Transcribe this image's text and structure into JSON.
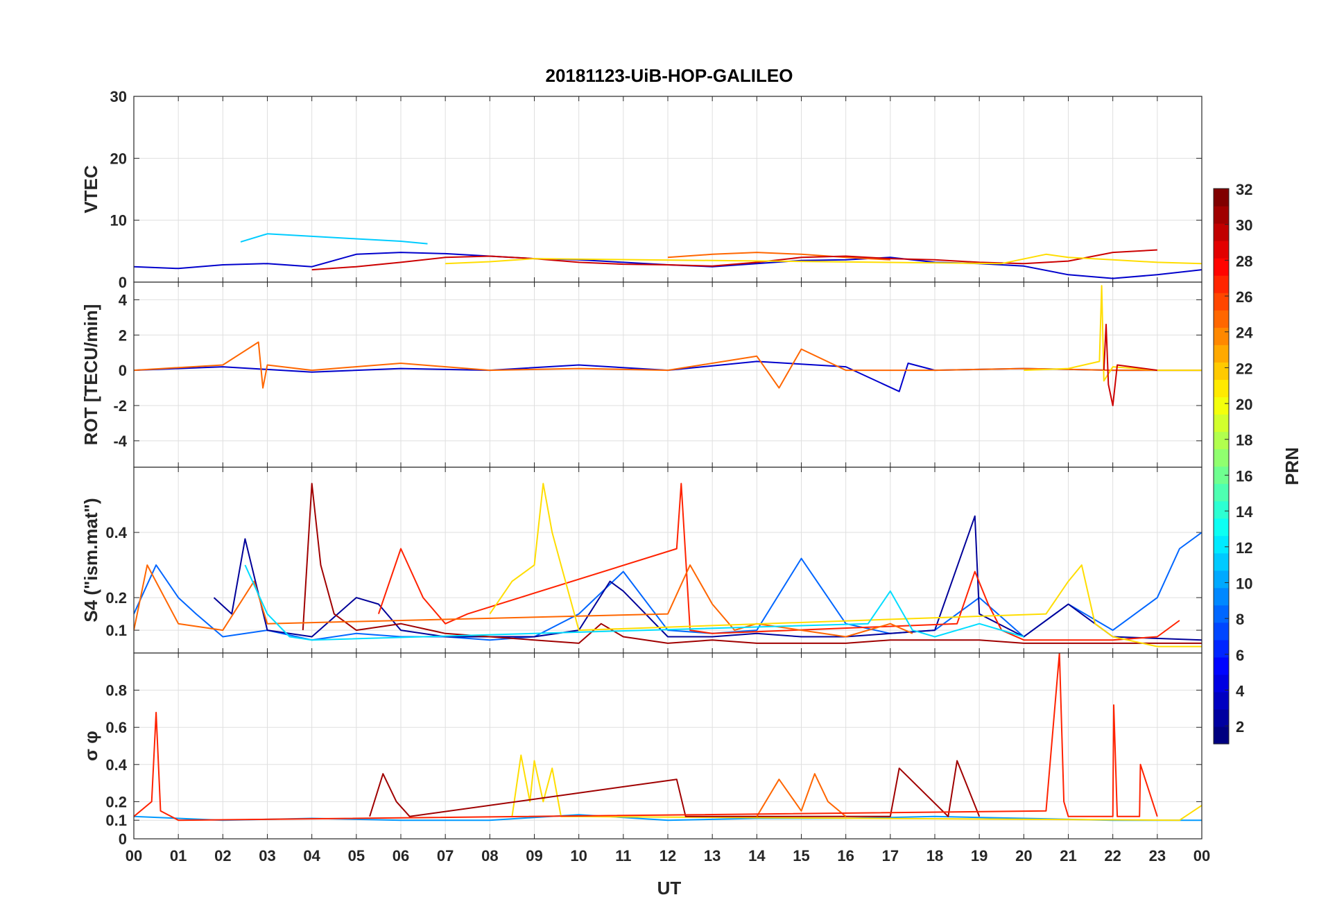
{
  "chart_data": {
    "type": "line",
    "title": "20181123-UiB-HOP-GALILEO",
    "xlabel": "UT",
    "x_tick_labels": [
      "00",
      "01",
      "02",
      "03",
      "04",
      "05",
      "06",
      "07",
      "08",
      "09",
      "10",
      "11",
      "12",
      "13",
      "14",
      "15",
      "16",
      "17",
      "18",
      "19",
      "20",
      "21",
      "22",
      "23",
      "00"
    ],
    "xlim": [
      0,
      24
    ],
    "panels": [
      {
        "name": "vtec",
        "ylabel": "VTEC",
        "ylim": [
          0,
          30
        ],
        "yticks": [
          0,
          10,
          20,
          30
        ],
        "ytick_labels": [
          "0",
          "10",
          "20",
          "30"
        ],
        "series": [
          {
            "prn": 4,
            "color": "#0000cc",
            "x": [
              0,
              1,
              2,
              3,
              4,
              5,
              6,
              7,
              8,
              9,
              10,
              11,
              12,
              13,
              14,
              15,
              16,
              17,
              18,
              19,
              20,
              21,
              22,
              23,
              24
            ],
            "y": [
              2.5,
              2.2,
              2.8,
              3,
              2.5,
              4.5,
              4.8,
              4.6,
              4.2,
              3.8,
              3.6,
              3.2,
              2.8,
              2.5,
              3,
              3.5,
              3.6,
              4,
              3.2,
              3,
              2.6,
              1.2,
              0.6,
              1.2,
              2
            ]
          },
          {
            "prn": 11,
            "color": "#00ccff",
            "x": [
              2.4,
              3,
              4,
              5,
              6,
              6.6
            ],
            "y": [
              6.5,
              7.8,
              7.4,
              7,
              6.6,
              6.2
            ]
          },
          {
            "prn": 24,
            "color": "#ff6600",
            "x": [
              12,
              13,
              14,
              15,
              16,
              17
            ],
            "y": [
              4,
              4.5,
              4.8,
              4.5,
              4,
              3.6
            ]
          },
          {
            "prn": 28,
            "color": "#cc0000",
            "x": [
              4,
              5,
              6,
              7,
              8,
              9,
              10,
              11,
              12,
              13,
              14,
              15,
              16,
              17,
              18,
              19,
              20,
              21,
              22,
              23
            ],
            "y": [
              2,
              2.5,
              3.2,
              4,
              4.2,
              3.8,
              3.2,
              2.9,
              2.8,
              2.6,
              3.2,
              4,
              4.2,
              3.8,
              3.6,
              3.2,
              3,
              3.4,
              4.8,
              5.2
            ]
          },
          {
            "prn": 20,
            "color": "#ffdd00",
            "x": [
              7,
              8,
              9,
              19.5,
              20.5,
              21,
              22,
              23,
              24
            ],
            "y": [
              3,
              3.3,
              3.8,
              3,
              4.5,
              4,
              3.6,
              3.2,
              3
            ]
          }
        ]
      },
      {
        "name": "rot",
        "ylabel": "ROT [TECU/min]",
        "ylim": [
          -5.5,
          5
        ],
        "yticks": [
          -4,
          -2,
          0,
          2,
          4
        ],
        "ytick_labels": [
          "-4",
          "-2",
          "0",
          "2",
          "4"
        ],
        "series": [
          {
            "prn": 4,
            "color": "#0000cc",
            "x": [
              0,
              2,
              4,
              6,
              8,
              10,
              12,
              14,
              16,
              17.2,
              17.4,
              18,
              20,
              22,
              24
            ],
            "y": [
              0,
              0.2,
              -0.1,
              0.1,
              0,
              0.3,
              0,
              0.5,
              0.2,
              -1.2,
              0.4,
              0,
              0.1,
              0,
              0
            ]
          },
          {
            "prn": 24,
            "color": "#ff6600",
            "x": [
              0,
              2,
              2.8,
              2.9,
              3,
              4,
              6,
              8,
              10,
              12,
              14,
              14.5,
              15,
              16,
              18,
              20,
              22,
              24
            ],
            "y": [
              0,
              0.3,
              1.6,
              -1,
              0.3,
              0,
              0.4,
              0,
              0.1,
              0,
              0.8,
              -1,
              1.2,
              0,
              0,
              0.1,
              0,
              0
            ]
          },
          {
            "prn": 20,
            "color": "#ffdd00",
            "x": [
              20,
              21,
              21.7,
              21.75,
              21.8,
              22,
              23,
              24
            ],
            "y": [
              0,
              0.1,
              0.5,
              4.8,
              -0.6,
              0.2,
              0,
              0
            ]
          },
          {
            "prn": 28,
            "color": "#cc0000",
            "x": [
              21.8,
              21.85,
              21.9,
              22,
              22.1,
              23
            ],
            "y": [
              0,
              2.6,
              -0.8,
              -2,
              0.3,
              0
            ]
          }
        ]
      },
      {
        "name": "s4",
        "ylabel": "S4 (\"ism.mat\")",
        "ylim": [
          0.03,
          0.6
        ],
        "yticks": [
          0.1,
          0.2,
          0.4
        ],
        "ytick_labels": [
          "0.1",
          "0.2",
          "0.4"
        ],
        "series": [
          {
            "prn": 8,
            "color": "#0066ff",
            "x": [
              0,
              0.5,
              1,
              1.4,
              2,
              3,
              4,
              5,
              6,
              7,
              8,
              9,
              10,
              11,
              12,
              13,
              14,
              15,
              16,
              17,
              18,
              19,
              20,
              21,
              22,
              23,
              23.5,
              24
            ],
            "y": [
              0.15,
              0.3,
              0.2,
              0.15,
              0.08,
              0.1,
              0.07,
              0.09,
              0.08,
              0.08,
              0.07,
              0.08,
              0.15,
              0.28,
              0.1,
              0.09,
              0.1,
              0.32,
              0.12,
              0.09,
              0.1,
              0.2,
              0.08,
              0.18,
              0.1,
              0.2,
              0.35,
              0.4
            ]
          },
          {
            "prn": 2,
            "color": "#000099",
            "x": [
              1.8,
              2.2,
              2.5,
              3,
              4,
              5,
              5.5,
              6,
              7,
              8,
              9,
              10,
              10.7,
              11,
              12,
              13,
              14,
              15,
              16,
              17,
              18,
              18.9,
              19,
              20,
              21,
              22,
              24
            ],
            "y": [
              0.2,
              0.15,
              0.38,
              0.1,
              0.08,
              0.2,
              0.18,
              0.1,
              0.08,
              0.08,
              0.08,
              0.1,
              0.25,
              0.22,
              0.08,
              0.08,
              0.09,
              0.08,
              0.08,
              0.09,
              0.1,
              0.45,
              0.15,
              0.08,
              0.18,
              0.08,
              0.07
            ]
          },
          {
            "prn": 30,
            "color": "#a00000",
            "x": [
              3.8,
              4,
              4.2,
              4.5,
              5,
              6,
              7,
              8,
              9,
              10,
              10.5,
              11,
              12,
              13,
              14,
              15,
              16,
              17,
              18,
              19,
              20,
              24
            ],
            "y": [
              0.1,
              0.55,
              0.3,
              0.15,
              0.1,
              0.12,
              0.09,
              0.08,
              0.07,
              0.06,
              0.12,
              0.08,
              0.06,
              0.07,
              0.06,
              0.06,
              0.06,
              0.07,
              0.07,
              0.07,
              0.06,
              0.06
            ]
          },
          {
            "prn": 27,
            "color": "#ff2200",
            "x": [
              5.5,
              6,
              6.5,
              7,
              7.5,
              12.2,
              12.3,
              12.5,
              13,
              18.5,
              18.9,
              19.2,
              19.5,
              20,
              21,
              22,
              23,
              23.5
            ],
            "y": [
              0.15,
              0.35,
              0.2,
              0.12,
              0.15,
              0.35,
              0.55,
              0.1,
              0.09,
              0.12,
              0.28,
              0.18,
              0.1,
              0.07,
              0.07,
              0.07,
              0.08,
              0.13
            ]
          },
          {
            "prn": 24,
            "color": "#ff6600",
            "x": [
              0,
              0.3,
              1,
              2,
              2.7,
              3,
              12,
              12.5,
              13,
              13.5,
              14,
              15,
              16,
              17,
              17.5
            ],
            "y": [
              0.1,
              0.3,
              0.12,
              0.1,
              0.25,
              0.12,
              0.15,
              0.3,
              0.18,
              0.1,
              0.12,
              0.1,
              0.08,
              0.12,
              0.09
            ]
          },
          {
            "prn": 20,
            "color": "#ffdd00",
            "x": [
              8,
              8.5,
              9,
              9.2,
              9.4,
              9.6,
              10,
              20.5,
              21,
              21.3,
              21.6,
              22,
              23,
              24
            ],
            "y": [
              0.15,
              0.25,
              0.3,
              0.55,
              0.4,
              0.3,
              0.1,
              0.15,
              0.25,
              0.3,
              0.12,
              0.08,
              0.05,
              0.05
            ]
          },
          {
            "prn": 12,
            "color": "#00ddff",
            "x": [
              2.5,
              3,
              3.5,
              4,
              16.5,
              17,
              17.5,
              18,
              19,
              20
            ],
            "y": [
              0.3,
              0.15,
              0.08,
              0.07,
              0.12,
              0.22,
              0.1,
              0.08,
              0.12,
              0.08
            ]
          }
        ]
      },
      {
        "name": "sigma_phi",
        "ylabel": "σ φ",
        "ylim": [
          0,
          1
        ],
        "yticks": [
          0,
          0.1,
          0.2,
          0.4,
          0.6,
          0.8
        ],
        "ytick_labels": [
          "0",
          "0.1",
          "0.2",
          "0.4",
          "0.6",
          "0.8"
        ],
        "series": [
          {
            "prn": 8,
            "color": "#0099ff",
            "x": [
              0,
              2,
              4,
              6,
              8,
              10,
              12,
              14,
              16,
              18,
              20,
              22,
              24
            ],
            "y": [
              0.12,
              0.1,
              0.11,
              0.1,
              0.1,
              0.13,
              0.1,
              0.11,
              0.11,
              0.12,
              0.11,
              0.1,
              0.1
            ]
          },
          {
            "prn": 20,
            "color": "#ffdd00",
            "x": [
              8.5,
              8.7,
              8.9,
              9,
              9.2,
              9.4,
              9.6,
              23.5,
              24
            ],
            "y": [
              0.12,
              0.45,
              0.2,
              0.42,
              0.2,
              0.38,
              0.12,
              0.1,
              0.18
            ]
          },
          {
            "prn": 30,
            "color": "#a00000",
            "x": [
              5.3,
              5.6,
              5.9,
              6.2,
              12.2,
              12.4,
              17,
              17.2,
              18.3,
              18.5,
              19
            ],
            "y": [
              0.12,
              0.35,
              0.2,
              0.12,
              0.32,
              0.12,
              0.12,
              0.38,
              0.12,
              0.42,
              0.12
            ]
          },
          {
            "prn": 24,
            "color": "#ff6600",
            "x": [
              14,
              14.5,
              15,
              15.3,
              15.6,
              16
            ],
            "y": [
              0.12,
              0.32,
              0.15,
              0.35,
              0.2,
              0.12
            ]
          },
          {
            "prn": 27,
            "color": "#ff2200",
            "x": [
              0,
              0.4,
              0.5,
              0.6,
              1,
              20.5,
              20.8,
              20.9,
              21,
              22,
              22.02,
              22.1,
              22.6,
              22.62,
              23
            ],
            "y": [
              0.12,
              0.2,
              0.68,
              0.15,
              0.1,
              0.15,
              1,
              0.2,
              0.12,
              0.12,
              0.72,
              0.12,
              0.12,
              0.4,
              0.12
            ]
          }
        ]
      }
    ],
    "colorbar": {
      "label": "PRN",
      "range": [
        1,
        32
      ],
      "tick_labels": [
        "2",
        "4",
        "6",
        "8",
        "10",
        "12",
        "14",
        "16",
        "18",
        "20",
        "22",
        "24",
        "26",
        "28",
        "30",
        "32"
      ],
      "colormap": "jet"
    },
    "legend": "none"
  }
}
